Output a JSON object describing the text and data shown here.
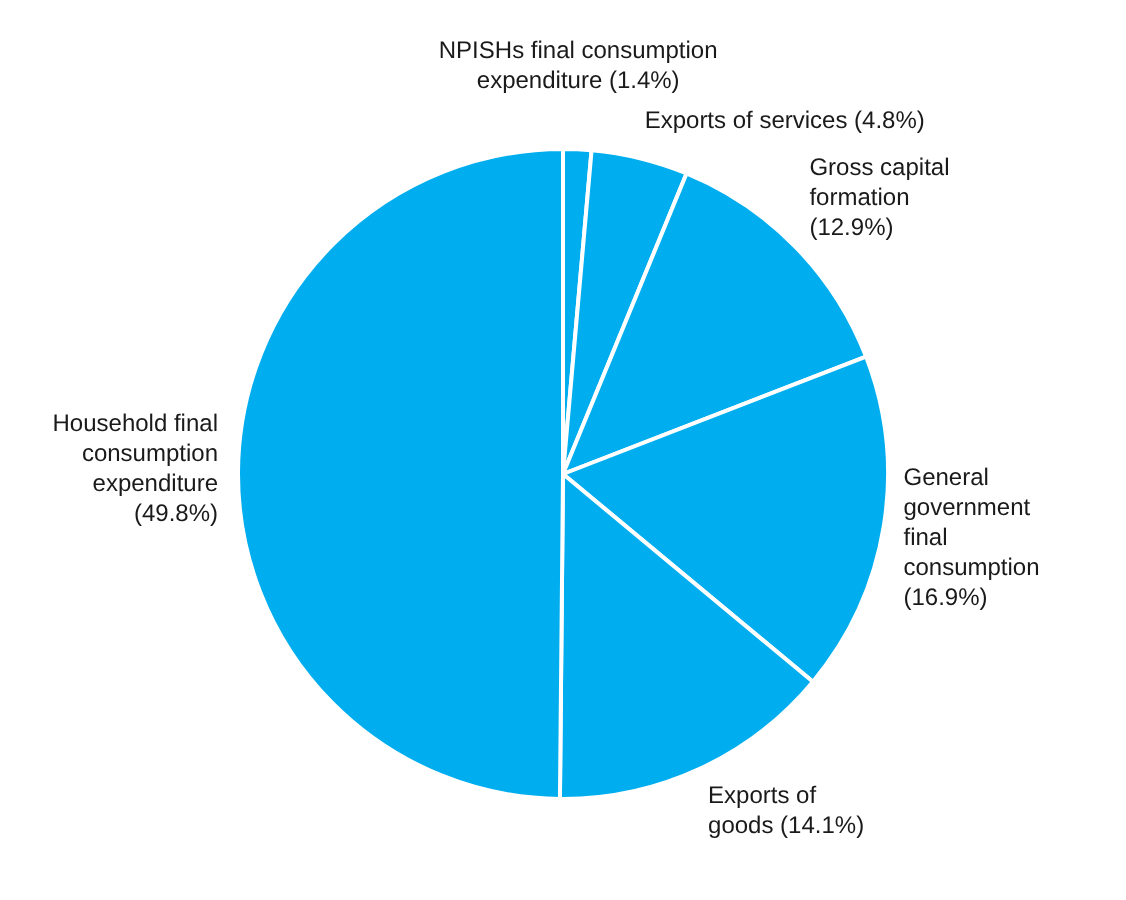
{
  "chart_data": {
    "type": "pie",
    "categories": [
      "NPISHs final consumption expenditure",
      "Exports of services",
      "Gross capital formation",
      "General government final consumption",
      "Exports of goods",
      "Household final consumption expenditure"
    ],
    "values": [
      1.4,
      4.8,
      12.9,
      16.9,
      14.1,
      49.8
    ],
    "colors": [
      "#00aeef",
      "#00aeef",
      "#00aeef",
      "#00aeef",
      "#00aeef",
      "#00aeef"
    ],
    "value_labels": [
      "(1.4%)",
      "(4.8%)",
      "(12.9%)",
      "(16.9%)",
      "(14.1%)",
      "(49.8%)"
    ],
    "legend": false
  }
}
